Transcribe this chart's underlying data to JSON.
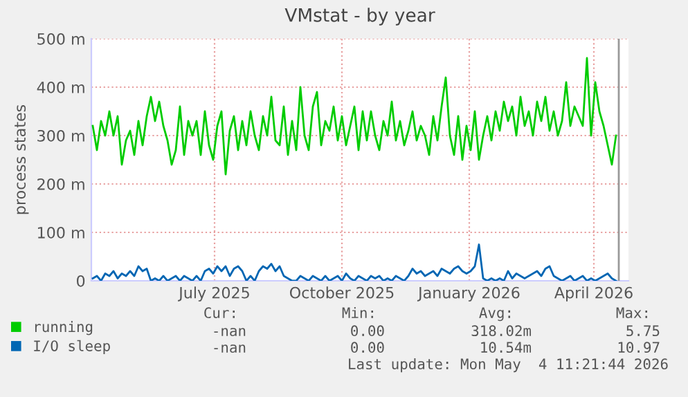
{
  "chart_data": {
    "type": "line",
    "title": "VMstat - by year",
    "ylabel": "process states",
    "x": [
      "2025-04-19",
      "2025-04-22",
      "2025-04-25",
      "2025-04-28",
      "2025-05-01",
      "2025-05-04",
      "2025-05-07",
      "2025-05-10",
      "2025-05-13",
      "2025-05-16",
      "2025-05-19",
      "2025-05-22",
      "2025-05-25",
      "2025-05-28",
      "2025-05-31",
      "2025-06-03",
      "2025-06-06",
      "2025-06-09",
      "2025-06-12",
      "2025-06-15",
      "2025-06-18",
      "2025-06-21",
      "2025-06-24",
      "2025-06-27",
      "2025-06-30",
      "2025-07-03",
      "2025-07-06",
      "2025-07-09",
      "2025-07-12",
      "2025-07-15",
      "2025-07-18",
      "2025-07-21",
      "2025-07-24",
      "2025-07-27",
      "2025-07-30",
      "2025-08-02",
      "2025-08-05",
      "2025-08-08",
      "2025-08-11",
      "2025-08-14",
      "2025-08-17",
      "2025-08-20",
      "2025-08-23",
      "2025-08-26",
      "2025-08-29",
      "2025-09-01",
      "2025-09-04",
      "2025-09-07",
      "2025-09-10",
      "2025-09-13",
      "2025-09-16",
      "2025-09-19",
      "2025-09-22",
      "2025-09-25",
      "2025-09-28",
      "2025-10-01",
      "2025-10-04",
      "2025-10-07",
      "2025-10-10",
      "2025-10-13",
      "2025-10-16",
      "2025-10-19",
      "2025-10-22",
      "2025-10-25",
      "2025-10-28",
      "2025-10-31",
      "2025-11-03",
      "2025-11-06",
      "2025-11-09",
      "2025-11-12",
      "2025-11-15",
      "2025-11-18",
      "2025-11-21",
      "2025-11-24",
      "2025-11-27",
      "2025-11-30",
      "2025-12-03",
      "2025-12-06",
      "2025-12-09",
      "2025-12-12",
      "2025-12-15",
      "2025-12-18",
      "2025-12-21",
      "2025-12-24",
      "2025-12-27",
      "2025-12-30",
      "2026-01-02",
      "2026-01-05",
      "2026-01-08",
      "2026-01-11",
      "2026-01-14",
      "2026-01-17",
      "2026-01-20",
      "2026-01-23",
      "2026-01-26",
      "2026-01-29",
      "2026-02-01",
      "2026-02-04",
      "2026-02-07",
      "2026-02-10",
      "2026-02-13",
      "2026-02-16",
      "2026-02-19",
      "2026-02-22",
      "2026-02-25",
      "2026-02-28",
      "2026-03-03",
      "2026-03-06",
      "2026-03-09",
      "2026-03-12",
      "2026-03-15",
      "2026-03-18",
      "2026-03-21",
      "2026-03-24",
      "2026-03-27",
      "2026-03-30",
      "2026-04-02",
      "2026-04-05",
      "2026-04-08",
      "2026-04-11",
      "2026-04-14",
      "2026-04-17",
      "2026-04-20",
      "2026-04-23",
      "2026-04-26",
      "2026-04-29",
      "2026-05-02"
    ],
    "series": [
      {
        "name": "running",
        "color": "#00cc00",
        "values": [
          320,
          270,
          330,
          300,
          350,
          300,
          340,
          240,
          290,
          310,
          260,
          330,
          280,
          340,
          380,
          330,
          370,
          320,
          290,
          240,
          270,
          360,
          260,
          330,
          300,
          330,
          260,
          350,
          280,
          250,
          320,
          350,
          220,
          310,
          340,
          270,
          330,
          280,
          350,
          300,
          270,
          340,
          300,
          380,
          290,
          280,
          360,
          260,
          330,
          270,
          400,
          300,
          270,
          360,
          390,
          280,
          330,
          310,
          360,
          290,
          340,
          280,
          320,
          360,
          270,
          350,
          290,
          350,
          300,
          270,
          330,
          300,
          370,
          290,
          330,
          280,
          310,
          350,
          290,
          320,
          300,
          260,
          340,
          290,
          360,
          420,
          300,
          260,
          340,
          250,
          320,
          270,
          350,
          250,
          300,
          340,
          290,
          350,
          310,
          370,
          330,
          360,
          300,
          380,
          320,
          350,
          300,
          370,
          330,
          380,
          310,
          350,
          300,
          330,
          410,
          320,
          360,
          340,
          320,
          460,
          300,
          410,
          350,
          320,
          280,
          240,
          300
        ]
      },
      {
        "name": "I/O sleep",
        "color": "#0066b3",
        "values": [
          5,
          10,
          0,
          15,
          10,
          20,
          5,
          15,
          10,
          20,
          10,
          30,
          20,
          25,
          0,
          5,
          0,
          10,
          0,
          5,
          10,
          0,
          10,
          5,
          0,
          10,
          0,
          20,
          25,
          15,
          30,
          20,
          30,
          10,
          25,
          30,
          20,
          0,
          10,
          0,
          20,
          30,
          25,
          35,
          20,
          30,
          10,
          5,
          0,
          0,
          10,
          5,
          0,
          10,
          5,
          0,
          10,
          0,
          5,
          10,
          0,
          15,
          5,
          0,
          10,
          5,
          0,
          10,
          5,
          10,
          0,
          5,
          0,
          10,
          5,
          0,
          10,
          25,
          15,
          20,
          10,
          15,
          20,
          10,
          25,
          20,
          15,
          25,
          30,
          20,
          15,
          20,
          30,
          75,
          5,
          0,
          5,
          0,
          5,
          0,
          20,
          5,
          15,
          10,
          5,
          10,
          15,
          20,
          10,
          25,
          30,
          10,
          5,
          0,
          5,
          10,
          0,
          5,
          10,
          0,
          5,
          0,
          5,
          10,
          15,
          5,
          0
        ]
      }
    ],
    "xlim": [
      "2025-04-18",
      "2026-05-11"
    ],
    "xticks": [
      {
        "value": "2025-07-16",
        "label": "July 2025"
      },
      {
        "value": "2025-10-16",
        "label": "October 2025"
      },
      {
        "value": "2026-01-16",
        "label": "January 2026"
      },
      {
        "value": "2026-04-16",
        "label": "April 2026"
      }
    ],
    "ylim": [
      0,
      500
    ],
    "yticks": [
      0,
      {
        "value": 100,
        "label": "100 m"
      },
      {
        "value": 200,
        "label": "200 m"
      },
      {
        "value": 300,
        "label": "300 m"
      },
      {
        "value": 400,
        "label": "400 m"
      },
      {
        "value": 500,
        "label": "500 m"
      }
    ],
    "ref_lines": [
      {
        "axis": "x",
        "value": "2026-05-04",
        "color": "#999999"
      }
    ],
    "grid": true,
    "legend": "bottom left",
    "marker": "none",
    "line_style": "solid",
    "annotations": [
      "Cur:",
      "Min:",
      "Avg:",
      "Max:",
      "-nan",
      "0.00",
      "318.02m",
      "5.75",
      "-nan",
      "0.00",
      "10.54m",
      "10.97",
      "Last update: Mon May  4 11:21:44 2026"
    ]
  }
}
